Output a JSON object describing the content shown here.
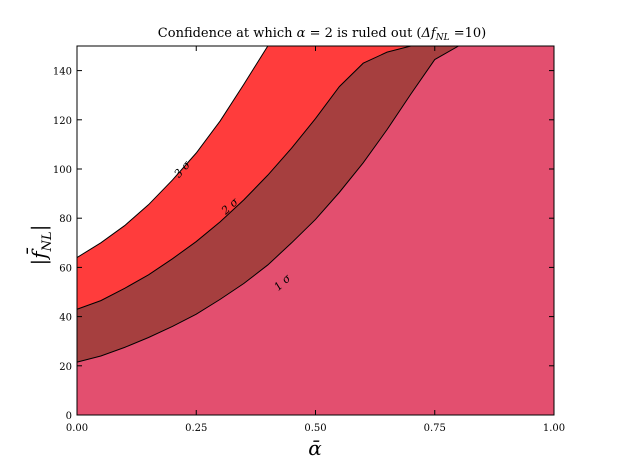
{
  "chart_data": {
    "type": "area",
    "title": "Confidence at which α = 2 is ruled out (Δf_NL =10)",
    "title_parts": {
      "prefix": "Confidence at which ",
      "alpha": "α",
      "eq": " = 2 is ruled out (",
      "delta_f": "Δf",
      "sub_nl": "NL",
      "suffix": " =10)"
    },
    "xlabel": "ᾱ",
    "ylabel": "|f̄",
    "ylabel_sub": "NL",
    "ylabel_bar": "|",
    "xlim": [
      0.0,
      1.0
    ],
    "ylim": [
      0,
      150
    ],
    "x_ticks": [
      0.0,
      0.25,
      0.5,
      0.75,
      1.0
    ],
    "x_tick_labels": [
      "0.00",
      "0.25",
      "0.50",
      "0.75",
      "1.00"
    ],
    "y_ticks": [
      0,
      20,
      40,
      60,
      80,
      100,
      120,
      140
    ],
    "y_tick_labels": [
      "0",
      "20",
      "40",
      "60",
      "80",
      "100",
      "120",
      "140"
    ],
    "grid": false,
    "colors": {
      "below_1sigma": "#e34f6f",
      "1_to_2_sigma": "#a63f3f",
      "2_to_3_sigma": "#ff3c3c",
      "above_3_sigma": "#ffffff",
      "contour_line": "#000000"
    },
    "contours": [
      {
        "label": "1 σ",
        "x": [
          0.0,
          0.05,
          0.1,
          0.15,
          0.2,
          0.25,
          0.3,
          0.35,
          0.4,
          0.45,
          0.5,
          0.55,
          0.6,
          0.65,
          0.7,
          0.75,
          0.8,
          0.85
        ],
        "y": [
          21.5,
          24,
          27.5,
          31.5,
          36,
          41,
          47,
          53.5,
          61,
          70,
          79.5,
          90.5,
          102.5,
          116,
          130.5,
          144.5,
          150,
          150
        ],
        "label_at": [
          0.43,
          54
        ]
      },
      {
        "label": "2 σ",
        "x": [
          0.0,
          0.05,
          0.1,
          0.15,
          0.2,
          0.25,
          0.3,
          0.35,
          0.4,
          0.45,
          0.5,
          0.55,
          0.6,
          0.65,
          0.7,
          0.75,
          0.8,
          0.85
        ],
        "y": [
          43,
          46.5,
          51.5,
          57,
          63.5,
          70.5,
          78.5,
          87.5,
          97.5,
          108.5,
          120.5,
          133.5,
          143,
          147.5,
          150,
          150,
          150,
          150
        ],
        "label_at": [
          0.32,
          85
        ]
      },
      {
        "label": "3 σ",
        "x": [
          0.0,
          0.05,
          0.1,
          0.15,
          0.2,
          0.25,
          0.3,
          0.35,
          0.4
        ],
        "y": [
          64,
          70,
          77,
          85.5,
          95.5,
          106.5,
          119.5,
          134.5,
          150
        ],
        "label_at": [
          0.22,
          100
        ]
      }
    ]
  }
}
